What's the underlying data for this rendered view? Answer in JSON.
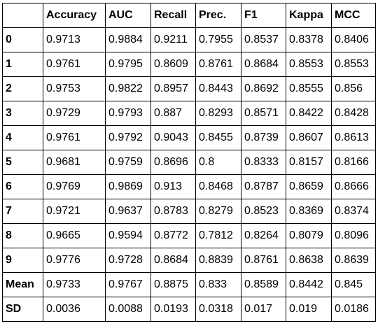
{
  "table": {
    "corner": "",
    "columns": [
      "Accuracy",
      "AUC",
      "Recall",
      "Prec.",
      "F1",
      "Kappa",
      "MCC"
    ],
    "rows": [
      {
        "label": "0",
        "values": [
          "0.9713",
          "0.9884",
          "0.9211",
          "0.7955",
          "0.8537",
          "0.8378",
          "0.8406"
        ]
      },
      {
        "label": "1",
        "values": [
          "0.9761",
          "0.9795",
          "0.8609",
          "0.8761",
          "0.8684",
          "0.8553",
          "0.8553"
        ]
      },
      {
        "label": "2",
        "values": [
          "0.9753",
          "0.9822",
          "0.8957",
          "0.8443",
          "0.8692",
          "0.8555",
          "0.856"
        ]
      },
      {
        "label": "3",
        "values": [
          "0.9729",
          "0.9793",
          "0.887",
          "0.8293",
          "0.8571",
          "0.8422",
          "0.8428"
        ]
      },
      {
        "label": "4",
        "values": [
          "0.9761",
          "0.9792",
          "0.9043",
          "0.8455",
          "0.8739",
          "0.8607",
          "0.8613"
        ]
      },
      {
        "label": "5",
        "values": [
          "0.9681",
          "0.9759",
          "0.8696",
          "0.8",
          "0.8333",
          "0.8157",
          "0.8166"
        ]
      },
      {
        "label": "6",
        "values": [
          "0.9769",
          "0.9869",
          "0.913",
          "0.8468",
          "0.8787",
          "0.8659",
          "0.8666"
        ]
      },
      {
        "label": "7",
        "values": [
          "0.9721",
          "0.9637",
          "0.8783",
          "0.8279",
          "0.8523",
          "0.8369",
          "0.8374"
        ]
      },
      {
        "label": "8",
        "values": [
          "0.9665",
          "0.9594",
          "0.8772",
          "0.7812",
          "0.8264",
          "0.8079",
          "0.8096"
        ]
      },
      {
        "label": "9",
        "values": [
          "0.9776",
          "0.9728",
          "0.8684",
          "0.8839",
          "0.8761",
          "0.8638",
          "0.8639"
        ]
      },
      {
        "label": "Mean",
        "values": [
          "0.9733",
          "0.9767",
          "0.8875",
          "0.833",
          "0.8589",
          "0.8442",
          "0.845"
        ]
      },
      {
        "label": "SD",
        "values": [
          "0.0036",
          "0.0088",
          "0.0193",
          "0.0318",
          "0.017",
          "0.019",
          "0.0186"
        ]
      }
    ]
  }
}
